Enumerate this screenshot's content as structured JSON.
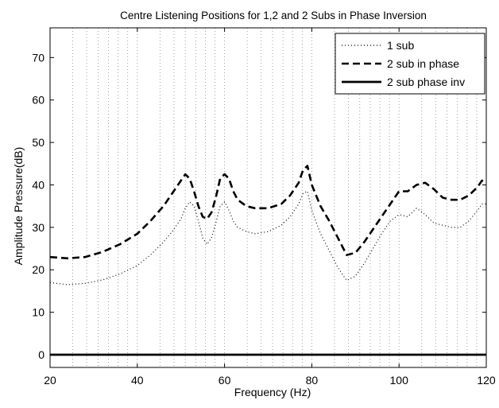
{
  "chart_data": {
    "type": "line",
    "title": "Centre Listening Positions for 1,2 and 2 Subs in Phase Inversion",
    "xlabel": "Frequency (Hz)",
    "ylabel": "Amplitude Pressure(dB)",
    "xlim": [
      20,
      120
    ],
    "ylim": [
      -3,
      77
    ],
    "xticks": [
      20,
      40,
      60,
      80,
      100,
      120
    ],
    "yticks": [
      0,
      10,
      20,
      30,
      40,
      50,
      60,
      70
    ],
    "grid": "vertical dotted at x-ticks and minor log-style positions",
    "legend_position": "top-right",
    "series": [
      {
        "name": "1 sub",
        "style": "dotted",
        "x": [
          20,
          24,
          28,
          32,
          36,
          40,
          43,
          46,
          48,
          50,
          51,
          52,
          53,
          54,
          55,
          56,
          57,
          58,
          59,
          60,
          61,
          62,
          63,
          65,
          67,
          70,
          73,
          75,
          77,
          78,
          79,
          80,
          82,
          84,
          86,
          88,
          90,
          92,
          94,
          96,
          98,
          100,
          102,
          104,
          106,
          108,
          110,
          112,
          114,
          116,
          118,
          119,
          120
        ],
        "y": [
          17,
          16.5,
          16.8,
          17.6,
          19,
          21,
          23.5,
          26.5,
          29,
          32,
          34.5,
          36,
          35,
          31.5,
          27.5,
          26,
          27.5,
          31,
          35,
          36,
          34,
          31.5,
          30,
          29,
          28.5,
          29,
          30.5,
          32.5,
          35.5,
          38,
          38.5,
          34,
          28.5,
          24.5,
          20.5,
          17.5,
          18.5,
          21.5,
          25,
          28.5,
          31.5,
          33,
          32.5,
          34.5,
          33,
          31,
          30.5,
          30,
          30,
          31.5,
          34,
          35.5,
          35.5
        ]
      },
      {
        "name": "2 sub in phase",
        "style": "dashed",
        "x": [
          20,
          24,
          28,
          32,
          36,
          40,
          43,
          46,
          48,
          50,
          51,
          52,
          53,
          54,
          55,
          56,
          57,
          58,
          59,
          60,
          61,
          62,
          63,
          65,
          67,
          70,
          73,
          75,
          77,
          78,
          79,
          80,
          82,
          84,
          86,
          88,
          90,
          92,
          94,
          96,
          98,
          100,
          102,
          104,
          106,
          108,
          110,
          112,
          114,
          116,
          118,
          119,
          120
        ],
        "y": [
          23,
          22.7,
          23,
          24.2,
          26,
          28.5,
          31.5,
          35,
          38,
          41,
          42.5,
          41.5,
          38.5,
          35,
          32.5,
          32,
          33.5,
          37,
          41.5,
          42.5,
          41.5,
          38.5,
          36.5,
          35,
          34.5,
          34.5,
          35.5,
          37.5,
          40.5,
          43.5,
          44.5,
          40,
          35,
          31.5,
          27.5,
          23.5,
          24,
          26.5,
          29.5,
          32.5,
          35.5,
          38.5,
          38.5,
          40,
          40.5,
          39,
          37,
          36.5,
          36.5,
          37.5,
          39.5,
          41,
          40.5
        ]
      },
      {
        "name": "2 sub phase inv",
        "style": "solid",
        "x": [
          20,
          120
        ],
        "y": [
          0,
          0
        ]
      }
    ]
  }
}
